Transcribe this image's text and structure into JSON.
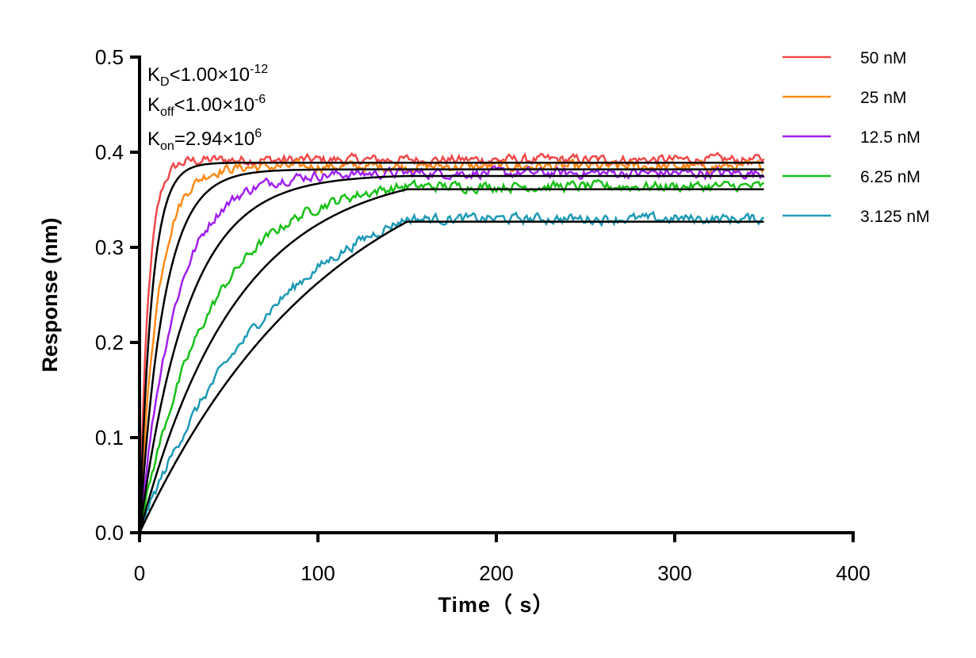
{
  "chart_data": {
    "type": "line",
    "title": "",
    "xlabel": "Time（ s）",
    "ylabel": "Response (nm)",
    "xlim": [
      0,
      400
    ],
    "ylim": [
      0,
      0.5
    ],
    "xticks": [
      "0",
      "100",
      "200",
      "300",
      "400"
    ],
    "yticks": [
      "0.0",
      "0.1",
      "0.2",
      "0.3",
      "0.4",
      "0.5"
    ],
    "xtick_values": [
      0,
      100,
      200,
      300,
      400
    ],
    "ytick_values": [
      0,
      0.1,
      0.2,
      0.3,
      0.4,
      0.5
    ],
    "grid": false,
    "legend_placement": "top-right",
    "annotations": {
      "kd": {
        "sym": "K",
        "sub": "D",
        "rel": "<1.00×10",
        "exp": "-12"
      },
      "koff": {
        "sym": "K",
        "sub": "off",
        "rel": "<1.00×10",
        "exp": "-6"
      },
      "kon": {
        "sym": "K",
        "sub": "on",
        "rel": "=2.94×10",
        "exp": "6"
      }
    },
    "kon": 2940000,
    "association_end_s": 150,
    "end_s": 350,
    "fit_color": "#000000",
    "series": [
      {
        "name": "50 nM",
        "conc_nM": 50,
        "plateau": 0.389,
        "color": "#f04848"
      },
      {
        "name": "25 nM",
        "conc_nM": 25,
        "plateau": 0.382,
        "color": "#ff8a18"
      },
      {
        "name": "12.5 nM",
        "conc_nM": 12.5,
        "plateau": 0.375,
        "color": "#a020f0"
      },
      {
        "name": "6.25 nM",
        "conc_nM": 6.25,
        "plateau": 0.361,
        "color": "#18c018"
      },
      {
        "name": "3.125 nM",
        "conc_nM": 3.125,
        "plateau": 0.327,
        "color": "#1e9ab6"
      }
    ]
  }
}
